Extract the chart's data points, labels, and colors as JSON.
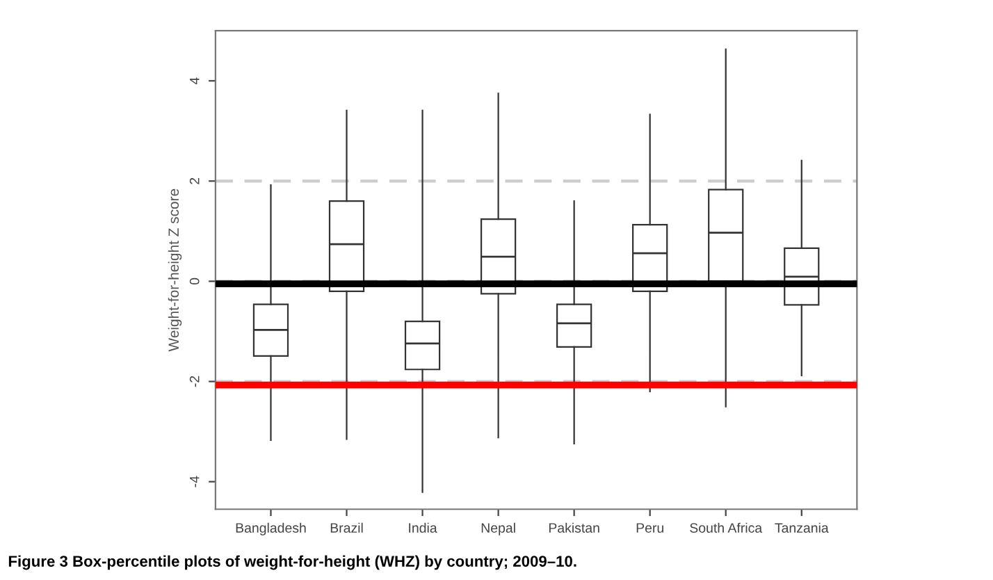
{
  "chart_data": {
    "type": "box",
    "ylabel": "Weight-for-height Z score",
    "categories": [
      "Bangladesh",
      "Brazil",
      "India",
      "Nepal",
      "Pakistan",
      "Peru",
      "South Africa",
      "Tanzania"
    ],
    "boxes": [
      {
        "low": -3.17,
        "q1": -1.49,
        "median": -0.97,
        "q3": -0.46,
        "high": 1.92
      },
      {
        "low": -3.15,
        "q1": -0.2,
        "median": 0.74,
        "q3": 1.6,
        "high": 3.41
      },
      {
        "low": -4.21,
        "q1": -1.76,
        "median": -1.24,
        "q3": -0.8,
        "high": 3.41
      },
      {
        "low": -3.12,
        "q1": -0.25,
        "median": 0.49,
        "q3": 1.24,
        "high": 3.75
      },
      {
        "low": -3.24,
        "q1": -1.31,
        "median": -0.84,
        "q3": -0.46,
        "high": 1.6
      },
      {
        "low": -2.2,
        "q1": -0.2,
        "median": 0.56,
        "q3": 1.13,
        "high": 3.33
      },
      {
        "low": -2.5,
        "q1": 0.0,
        "median": 0.97,
        "q3": 1.83,
        "high": 4.63
      },
      {
        "low": -1.88,
        "q1": -0.47,
        "median": 0.09,
        "q3": 0.66,
        "high": 2.41
      }
    ],
    "color": "#333333",
    "ylim": [
      -4.55,
      5.0
    ],
    "yticks": [
      -4,
      -2,
      0,
      2,
      4
    ],
    "ref_lines": [
      {
        "axis": "y",
        "value": 2,
        "color": "#cccccc",
        "line_style": "dashed"
      },
      {
        "axis": "y",
        "value": 0,
        "color": "#cccccc",
        "line_style": "dashed"
      },
      {
        "axis": "y",
        "value": -2,
        "color": "#cccccc",
        "line_style": "dashed"
      },
      {
        "axis": "y",
        "value": -0.05,
        "color": "#000000",
        "line_style": "solid"
      },
      {
        "axis": "y",
        "value": -2.07,
        "color": "#ff0000",
        "line_style": "solid"
      }
    ],
    "grid": false,
    "annotations": [
      "Figure 3 Box-percentile plots of weight-for-height (WHZ) by country; 2009–10."
    ]
  }
}
